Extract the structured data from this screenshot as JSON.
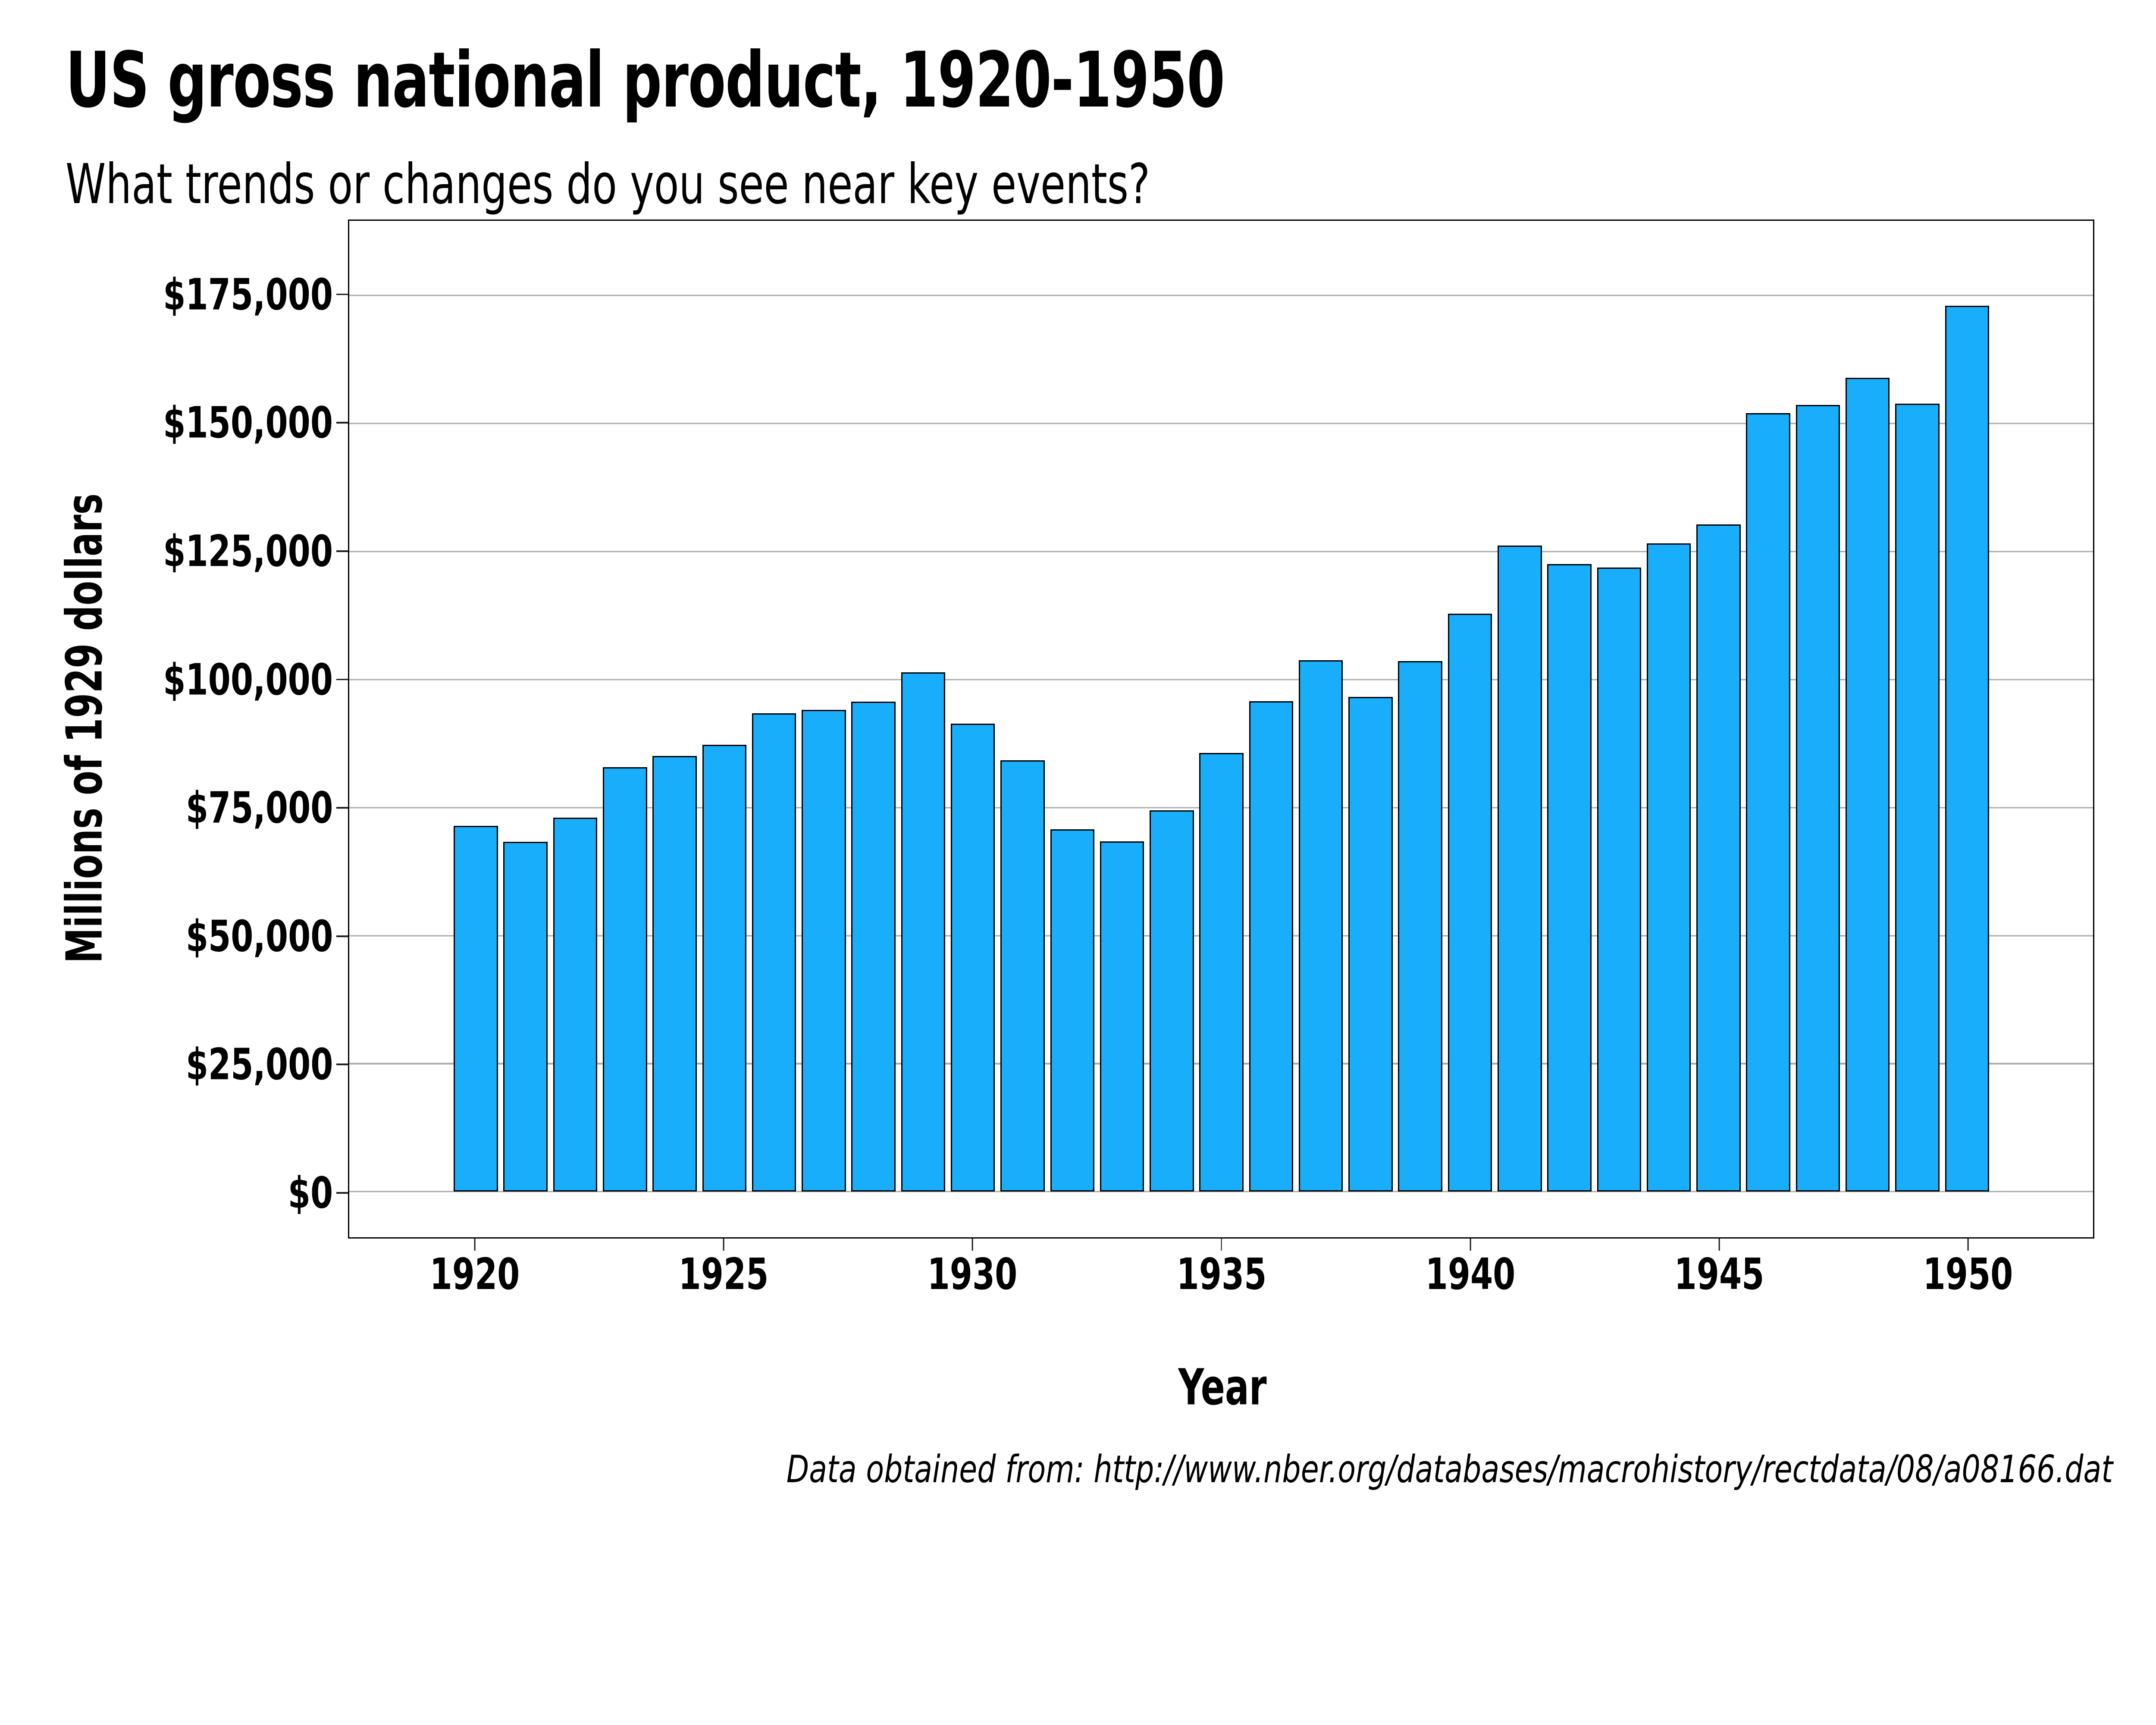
{
  "title": "US gross national product, 1920-1950",
  "subtitle": "What trends or changes do you see near key events?",
  "caption": "Data obtained from: http://www.nber.org/databases/macrohistory/rectdata/08/a08166.dat",
  "chart_data": {
    "type": "bar",
    "title": "US gross national product, 1920-1950",
    "subtitle": "What trends or changes do you see near key events?",
    "caption": "Data obtained from: http://www.nber.org/databases/macrohistory/rectdata/08/a08166.dat",
    "xlabel": "Year",
    "ylabel": "Millions of 1929 dollars",
    "x": [
      1920,
      1921,
      1922,
      1923,
      1924,
      1925,
      1926,
      1927,
      1928,
      1929,
      1930,
      1931,
      1932,
      1933,
      1934,
      1935,
      1936,
      1937,
      1938,
      1939,
      1940,
      1941,
      1942,
      1943,
      1944,
      1945,
      1946,
      1947,
      1948,
      1949,
      1950
    ],
    "values": [
      71400,
      68300,
      73000,
      82900,
      85100,
      87300,
      93400,
      94100,
      95700,
      101400,
      91400,
      84200,
      70800,
      68400,
      74500,
      85700,
      95800,
      103800,
      96600,
      103600,
      112900,
      126200,
      122600,
      121900,
      126600,
      130300,
      152000,
      153600,
      158900,
      153900,
      173000
    ],
    "ylim": [
      0,
      175000
    ],
    "y_ticks": [
      {
        "value": 0,
        "label": "$0"
      },
      {
        "value": 25000,
        "label": "$25,000"
      },
      {
        "value": 50000,
        "label": "$50,000"
      },
      {
        "value": 75000,
        "label": "$75,000"
      },
      {
        "value": 100000,
        "label": "$100,000"
      },
      {
        "value": 125000,
        "label": "$125,000"
      },
      {
        "value": 150000,
        "label": "$150,000"
      },
      {
        "value": 175000,
        "label": "$175,000"
      }
    ],
    "x_ticks": [
      1920,
      1925,
      1930,
      1935,
      1940,
      1945,
      1950
    ],
    "grid": "horizontal-major",
    "legend": "none",
    "bar_color": "#18AEFC",
    "bar_border_color": "#000000",
    "gridline_color": "#ABABAB",
    "axis_color": "#000000"
  }
}
